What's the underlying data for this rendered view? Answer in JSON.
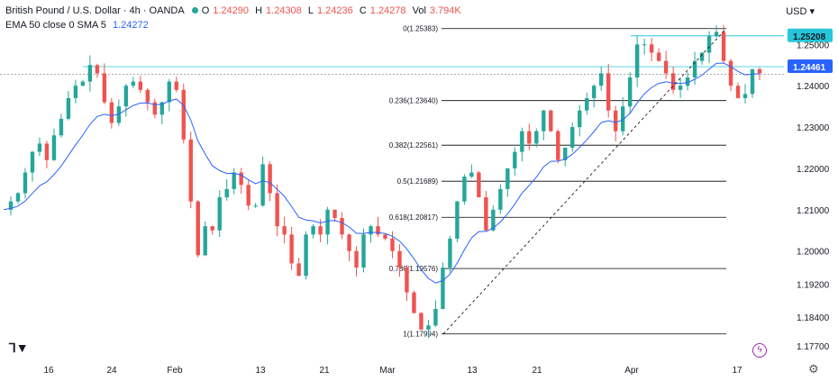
{
  "legend": {
    "symbol": "British Pound / U.S. Dollar · 4h · OANDA",
    "open_label": "O",
    "open": "1.24290",
    "high_label": "H",
    "high": "1.24308",
    "low_label": "L",
    "low": "1.24236",
    "close_label": "C",
    "close": "1.24278",
    "vol_label": "Vol",
    "vol": "3.794K",
    "indicator": "EMA 50 close 0 SMA 5",
    "indicator_value": "1.24272"
  },
  "currency_menu": "USD",
  "colors": {
    "up": "#26a69a",
    "down": "#ef5350",
    "ema": "#2962ff",
    "fib": "#000000",
    "trend": "#000000",
    "hline": "#26c6da",
    "badge_hi": "#26c6da",
    "badge_cur": "#2962ff"
  },
  "icons": {
    "logo": "tradingview-logo-icon",
    "lightning": "lightning-icon",
    "settings": "gear-icon"
  },
  "chart_data": {
    "type": "candlestick",
    "x_ticks": [
      "16",
      "24",
      "Feb",
      "13",
      "21",
      "Mar",
      "13",
      "21",
      "Apr",
      "17"
    ],
    "y_ticks": [
      "1.25000",
      "1.24000",
      "1.23000",
      "1.22000",
      "1.21000",
      "1.20000",
      "1.19200",
      "1.18400",
      "1.17700"
    ],
    "ylim": [
      1.174,
      1.259
    ],
    "price_badges": [
      "1.25208",
      "1.24461"
    ],
    "fib_levels": [
      {
        "label": "0(1.25383)",
        "value": 1.25383
      },
      {
        "label": "0.236(1.23640)",
        "value": 1.2364
      },
      {
        "label": "0.382(1.22561)",
        "value": 1.22561
      },
      {
        "label": "0.5(1.21689)",
        "value": 1.21689
      },
      {
        "label": "0.618(1.20817)",
        "value": 1.20817
      },
      {
        "label": "0.786(1.19576)",
        "value": 1.19576
      },
      {
        "label": "1(1.17994)",
        "value": 1.17994
      }
    ],
    "horizontal_lines": [
      1.25208,
      1.24461
    ],
    "trendline": {
      "from": 1.17994,
      "to": 1.25383
    },
    "price_path": [
      1.21,
      1.212,
      1.214,
      1.219,
      1.224,
      1.226,
      1.222,
      1.228,
      1.232,
      1.237,
      1.24,
      1.241,
      1.245,
      1.243,
      1.236,
      1.231,
      1.235,
      1.24,
      1.241,
      1.239,
      1.236,
      1.233,
      1.236,
      1.241,
      1.239,
      1.227,
      1.212,
      1.199,
      1.206,
      1.205,
      1.213,
      1.215,
      1.219,
      1.216,
      1.211,
      1.211,
      1.221,
      1.214,
      1.206,
      1.204,
      1.197,
      1.194,
      1.204,
      1.206,
      1.204,
      1.21,
      1.208,
      1.204,
      1.2,
      1.196,
      1.204,
      1.206,
      1.204,
      1.203,
      1.2,
      1.196,
      1.19,
      1.185,
      1.181,
      1.182,
      1.186,
      1.196,
      1.203,
      1.212,
      1.218,
      1.219,
      1.213,
      1.205,
      1.21,
      1.215,
      1.22,
      1.224,
      1.229,
      1.226,
      1.229,
      1.234,
      1.229,
      1.222,
      1.225,
      1.23,
      1.234,
      1.237,
      1.24,
      1.243,
      1.234,
      1.229,
      1.235,
      1.242,
      1.25,
      1.25,
      1.248,
      1.246,
      1.243,
      1.239,
      1.24,
      1.242,
      1.246,
      1.248,
      1.252,
      1.253,
      1.246,
      1.24,
      1.237,
      1.238,
      1.244,
      1.243
    ]
  }
}
